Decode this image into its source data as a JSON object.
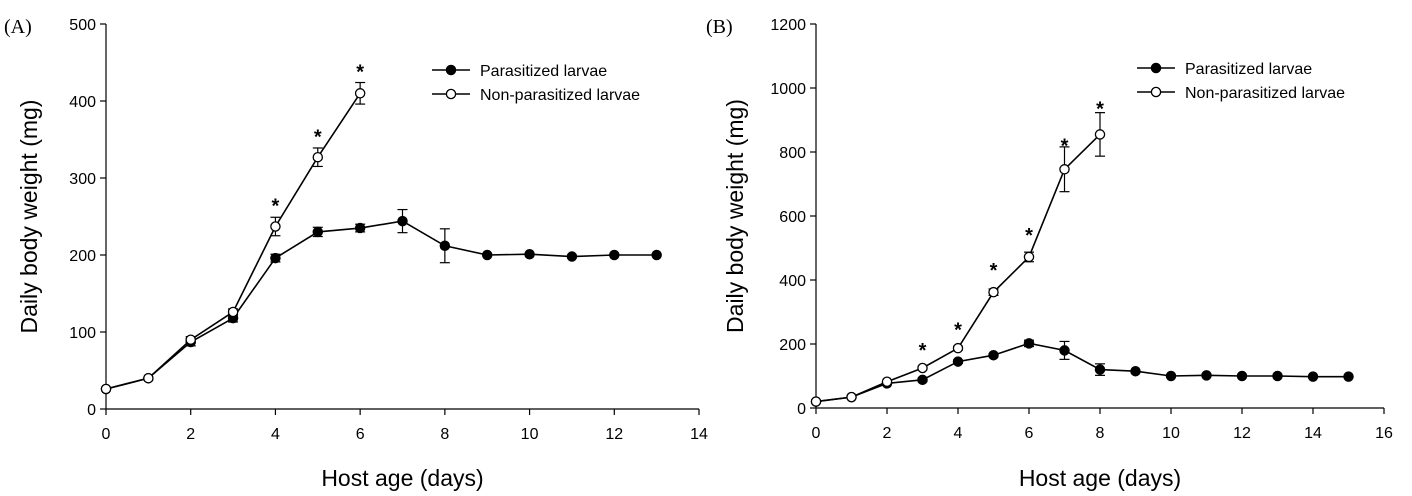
{
  "chart_data": [
    {
      "panel_label": "(A)",
      "type": "line",
      "xlabel": "Host age (days)",
      "ylabel": "Daily body weight (mg)",
      "xlim": [
        0,
        14
      ],
      "ylim": [
        0,
        500
      ],
      "xticks": [
        0,
        2,
        4,
        6,
        8,
        10,
        12,
        14
      ],
      "yticks": [
        0,
        100,
        200,
        300,
        400,
        500
      ],
      "grid": false,
      "legend_position": "top-right",
      "series": [
        {
          "name": "Parasitized larvae",
          "marker": "filled-circle",
          "x": [
            0,
            1,
            2,
            3,
            4,
            5,
            6,
            7,
            8,
            9,
            10,
            11,
            12,
            13
          ],
          "y": [
            26,
            40,
            87,
            118,
            196,
            230,
            235,
            244,
            212,
            200,
            201,
            198,
            200,
            200
          ],
          "error": [
            0,
            0,
            5,
            5,
            5,
            6,
            5,
            15,
            22,
            0,
            0,
            0,
            0,
            0
          ]
        },
        {
          "name": "Non-parasitized larvae",
          "marker": "open-circle",
          "x": [
            0,
            1,
            2,
            3,
            4,
            5,
            6
          ],
          "y": [
            26,
            40,
            90,
            126,
            237,
            327,
            410
          ],
          "error": [
            0,
            0,
            4,
            4,
            12,
            12,
            14
          ]
        }
      ],
      "significance_marks": [
        {
          "x": 4,
          "y": 268,
          "label": "*"
        },
        {
          "x": 5,
          "y": 358,
          "label": "*"
        },
        {
          "x": 6,
          "y": 442,
          "label": "*"
        }
      ]
    },
    {
      "panel_label": "(B)",
      "type": "line",
      "xlabel": "Host age (days)",
      "ylabel": "Daily body weight (mg)",
      "xlim": [
        0,
        16
      ],
      "ylim": [
        0,
        1200
      ],
      "xticks": [
        0,
        2,
        4,
        6,
        8,
        10,
        12,
        14,
        16
      ],
      "yticks": [
        0,
        200,
        400,
        600,
        800,
        1000,
        1200
      ],
      "grid": false,
      "legend_position": "top-right",
      "series": [
        {
          "name": "Parasitized larvae",
          "marker": "filled-circle",
          "x": [
            0,
            1,
            2,
            3,
            4,
            5,
            6,
            7,
            8,
            9,
            10,
            11,
            12,
            13,
            14,
            15
          ],
          "y": [
            20,
            34,
            77,
            88,
            145,
            165,
            202,
            180,
            120,
            115,
            100,
            102,
            100,
            100,
            98,
            98
          ],
          "error": [
            0,
            0,
            0,
            5,
            5,
            5,
            10,
            28,
            18,
            0,
            0,
            0,
            0,
            0,
            0,
            0
          ]
        },
        {
          "name": "Non-parasitized larvae",
          "marker": "open-circle",
          "x": [
            0,
            1,
            2,
            3,
            4,
            5,
            6,
            7,
            8
          ],
          "y": [
            20,
            34,
            82,
            125,
            187,
            362,
            472,
            746,
            855
          ],
          "error": [
            0,
            0,
            0,
            5,
            6,
            10,
            15,
            70,
            68
          ]
        }
      ],
      "significance_marks": [
        {
          "x": 3,
          "y": 190,
          "label": "*"
        },
        {
          "x": 4,
          "y": 255,
          "label": "*"
        },
        {
          "x": 5,
          "y": 440,
          "label": "*"
        },
        {
          "x": 6,
          "y": 550,
          "label": "*"
        },
        {
          "x": 7,
          "y": 830,
          "label": "*"
        },
        {
          "x": 8,
          "y": 945,
          "label": "*"
        }
      ]
    }
  ]
}
